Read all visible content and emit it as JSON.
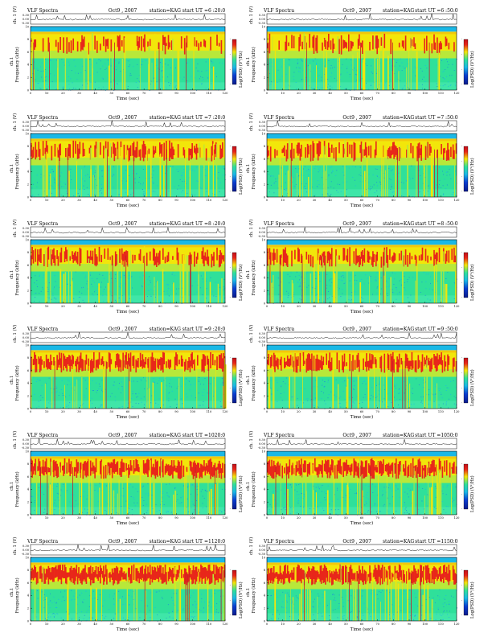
{
  "page": {
    "panels": [
      {
        "title": "VLF Spectra",
        "date": "Oct9 , 2007",
        "station": "station=KAG",
        "start_ut": "start  UT  =6 :20:0"
      },
      {
        "title": "VLF Spectra",
        "date": "Oct9 , 2007",
        "station": "station=KAG",
        "start_ut": "start  UT  =6 :50:0"
      },
      {
        "title": "VLF Spectra",
        "date": "Oct9 , 2007",
        "station": "station=KAG",
        "start_ut": "start  UT  =7 :20:0"
      },
      {
        "title": "VLF Spectra",
        "date": "Oct9 , 2007",
        "station": "station=KAG",
        "start_ut": "start  UT  =7 :50:0"
      },
      {
        "title": "VLF Spectra",
        "date": "Oct9 , 2007",
        "station": "station=KAG",
        "start_ut": "start  UT  =8 :20:0"
      },
      {
        "title": "VLF Spectra",
        "date": "Oct9 , 2007",
        "station": "station=KAG",
        "start_ut": "start  UT  =8 :50:0"
      },
      {
        "title": "VLF Spectra",
        "date": "Oct9 , 2007",
        "station": "station=KAG",
        "start_ut": "start  UT  =9 :20:0"
      },
      {
        "title": "VLF Spectra",
        "date": "Oct9 , 2007",
        "station": "station=KAG",
        "start_ut": "start  UT  =9 :50:0"
      },
      {
        "title": "VLF Spectra",
        "date": "Oct9 , 2007",
        "station": "station=KAG",
        "start_ut": "start  UT  =1020:0"
      },
      {
        "title": "VLF Spectra",
        "date": "Oct9 , 2007",
        "station": "station=KAG",
        "start_ut": "start  UT  =1050:0"
      },
      {
        "title": "VLF Spectra",
        "date": "Oct9 , 2007",
        "station": "station=KAG",
        "start_ut": "start  UT  =1120:0"
      },
      {
        "title": "VLF Spectra",
        "date": "Oct9 , 2007",
        "station": "station=KAG",
        "start_ut": "start  UT  =1150:0"
      }
    ]
  },
  "chart_data": {
    "type": "heatmap",
    "description_kind": "spectrogram",
    "x_label": "Time (sec)",
    "x_range": [
      0,
      120
    ],
    "x_ticks": [
      "0",
      "10",
      "20",
      "30",
      "40",
      "50",
      "60",
      "70",
      "80",
      "90",
      "100",
      "110",
      "120"
    ],
    "waveform_label": "ch. 1 (V)",
    "waveform_ticks": [
      "0.30",
      "0.00",
      "-0.30"
    ],
    "y_label_ch": "ch.1",
    "y_label": "Frequency  (kHz)",
    "y_range": [
      0,
      10
    ],
    "y_ticks": [
      "0",
      "2",
      "4",
      "6",
      "8",
      "10"
    ],
    "colorbar_label": "Log(PSD) (V²/Hz)",
    "colorbar_ticks": [
      "-",
      "-",
      "-",
      "-"
    ],
    "colors": {
      "noise": "#2fe09a",
      "sferic": "#f2e60a",
      "strong": "#e8261a",
      "cutoff": "#1ab8e6",
      "floor": "#0a3cd0"
    }
  }
}
